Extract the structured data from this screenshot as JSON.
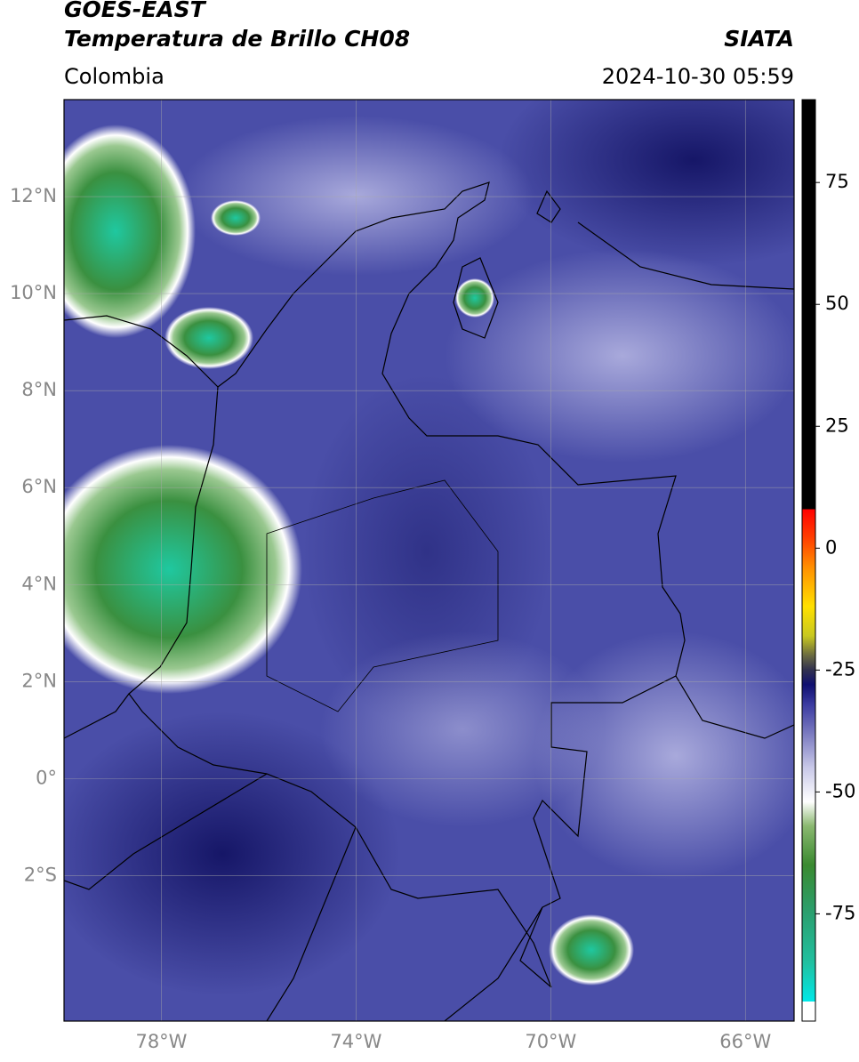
{
  "header": {
    "title": "GOES-EAST",
    "subtitle": "Temperatura de Brillo CH08",
    "region": "Colombia",
    "source": "SIATA",
    "timestamp": "2024-10-30 05:59"
  },
  "map": {
    "xlim": [
      -80,
      -65
    ],
    "ylim": [
      -5,
      14
    ],
    "grid": true,
    "xticks": [
      {
        "value": -78,
        "label": "78°W"
      },
      {
        "value": -74,
        "label": "74°W"
      },
      {
        "value": -70,
        "label": "70°W"
      },
      {
        "value": -66,
        "label": "66°W"
      }
    ],
    "yticks": [
      {
        "value": 12,
        "label": "12°N"
      },
      {
        "value": 10,
        "label": "10°N"
      },
      {
        "value": 8,
        "label": "8°N"
      },
      {
        "value": 6,
        "label": "6°N"
      },
      {
        "value": 4,
        "label": "4°N"
      },
      {
        "value": 2,
        "label": "2°N"
      },
      {
        "value": 0,
        "label": "0°"
      },
      {
        "value": -2,
        "label": "2°S"
      }
    ]
  },
  "colorbar": {
    "lim": [
      -97,
      92
    ],
    "ticks": [
      75,
      50,
      25,
      0,
      -25,
      -50,
      -75
    ],
    "stops": [
      {
        "value": -97,
        "color": "#ffffff"
      },
      {
        "value": -93,
        "color": "#ffffff"
      },
      {
        "value": -93,
        "color": "#00e8e8"
      },
      {
        "value": -85,
        "color": "#20c0a0"
      },
      {
        "value": -75,
        "color": "#2aa070"
      },
      {
        "value": -65,
        "color": "#3a8a30"
      },
      {
        "value": -57,
        "color": "#8ab870"
      },
      {
        "value": -52,
        "color": "#ffffff"
      },
      {
        "value": -45,
        "color": "#c8c8e8"
      },
      {
        "value": -38,
        "color": "#7a7ac0"
      },
      {
        "value": -32,
        "color": "#3a3aa0"
      },
      {
        "value": -28,
        "color": "#101070"
      },
      {
        "value": -25,
        "color": "#303050"
      },
      {
        "value": -22,
        "color": "#6a6a40"
      },
      {
        "value": -18,
        "color": "#c8c820"
      },
      {
        "value": -12,
        "color": "#ffe000"
      },
      {
        "value": -4,
        "color": "#ff9000"
      },
      {
        "value": 2,
        "color": "#ff4000"
      },
      {
        "value": 8,
        "color": "#ff0000"
      },
      {
        "value": 8,
        "color": "#000000"
      },
      {
        "value": 92,
        "color": "#000000"
      }
    ]
  }
}
